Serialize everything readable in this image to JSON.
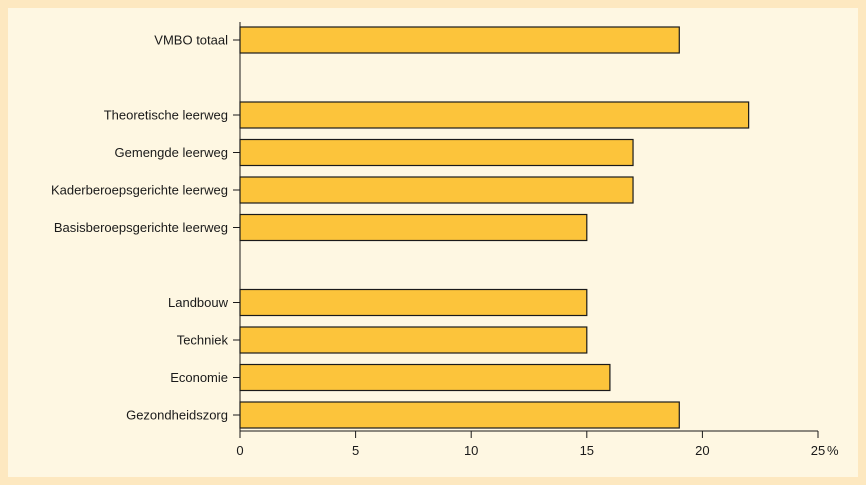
{
  "chart_data": {
    "type": "bar",
    "orientation": "horizontal",
    "title": "",
    "xlabel": "",
    "ylabel": "",
    "unit": "%",
    "xlim": [
      0,
      25
    ],
    "xticks": [
      0,
      5,
      10,
      15,
      20,
      25
    ],
    "grid": false,
    "bar_color": "#fcc43b",
    "background_color": "#fef7e2",
    "outer_color": "#fde8c0",
    "groups": [
      {
        "categories": [
          "VMBO totaal"
        ],
        "values": [
          19
        ]
      },
      {
        "categories": [
          "Theoretische leerweg",
          "Gemengde leerweg",
          "Kaderberoepsgerichte leerweg",
          "Basisberoepsgerichte leerweg"
        ],
        "values": [
          22,
          17,
          17,
          15
        ]
      },
      {
        "categories": [
          "Landbouw",
          "Techniek",
          "Economie",
          "Gezondheidszorg"
        ],
        "values": [
          15,
          15,
          16,
          19
        ]
      }
    ]
  }
}
